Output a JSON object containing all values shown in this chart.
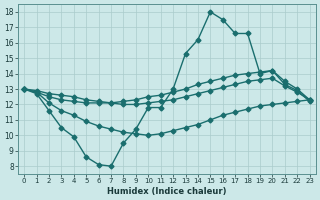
{
  "xlabel": "Humidex (Indice chaleur)",
  "bg_color": "#cce8e8",
  "grid_color": "#aacccc",
  "line_color": "#1a6e6e",
  "xlim": [
    -0.5,
    23.5
  ],
  "ylim": [
    7.5,
    18.5
  ],
  "yticks": [
    8,
    9,
    10,
    11,
    12,
    13,
    14,
    15,
    16,
    17,
    18
  ],
  "xticks": [
    0,
    1,
    2,
    3,
    4,
    5,
    6,
    7,
    8,
    9,
    10,
    11,
    12,
    13,
    14,
    15,
    16,
    17,
    18,
    19,
    20,
    21,
    22,
    23
  ],
  "series": [
    {
      "x": [
        0,
        1,
        2,
        3,
        4,
        5,
        6,
        7,
        8,
        9,
        10,
        11,
        12,
        13,
        14,
        15,
        16,
        17,
        18,
        19,
        20,
        21,
        22,
        23
      ],
      "y": [
        13.0,
        12.7,
        11.6,
        10.5,
        9.9,
        8.6,
        8.1,
        8.0,
        9.5,
        10.4,
        11.8,
        11.8,
        13.0,
        15.3,
        16.2,
        18.0,
        17.5,
        16.6,
        16.6,
        14.0,
        14.2,
        13.3,
        12.9,
        12.2
      ],
      "marker": "D",
      "markersize": 2.5,
      "linewidth": 1.0
    },
    {
      "x": [
        0,
        1,
        2,
        3,
        4,
        5,
        6,
        7,
        8,
        9,
        10,
        11,
        12,
        13,
        14,
        15,
        16,
        17,
        18,
        19,
        20,
        21,
        22,
        23
      ],
      "y": [
        13.0,
        12.8,
        12.5,
        12.3,
        12.2,
        12.1,
        12.1,
        12.1,
        12.2,
        12.3,
        12.5,
        12.6,
        12.8,
        13.0,
        13.3,
        13.5,
        13.7,
        13.9,
        14.0,
        14.1,
        14.2,
        13.5,
        13.0,
        12.3
      ],
      "marker": "D",
      "markersize": 2.5,
      "linewidth": 1.0
    },
    {
      "x": [
        0,
        1,
        2,
        3,
        4,
        5,
        6,
        7,
        8,
        9,
        10,
        11,
        12,
        13,
        14,
        15,
        16,
        17,
        18,
        19,
        20,
        21,
        22,
        23
      ],
      "y": [
        13.0,
        12.9,
        12.7,
        12.6,
        12.5,
        12.3,
        12.2,
        12.1,
        12.0,
        12.0,
        12.1,
        12.2,
        12.3,
        12.5,
        12.7,
        12.9,
        13.1,
        13.3,
        13.5,
        13.6,
        13.7,
        13.2,
        12.8,
        12.3
      ],
      "marker": "D",
      "markersize": 2.5,
      "linewidth": 1.0
    },
    {
      "x": [
        0,
        1,
        2,
        3,
        4,
        5,
        6,
        7,
        8,
        9,
        10,
        11,
        12,
        13,
        14,
        15,
        16,
        17,
        18,
        19,
        20,
        21,
        22,
        23
      ],
      "y": [
        13.0,
        12.8,
        12.1,
        11.6,
        11.3,
        10.9,
        10.6,
        10.4,
        10.2,
        10.1,
        10.0,
        10.1,
        10.3,
        10.5,
        10.7,
        11.0,
        11.3,
        11.5,
        11.7,
        11.9,
        12.0,
        12.1,
        12.2,
        12.3
      ],
      "marker": "D",
      "markersize": 2.5,
      "linewidth": 1.0
    }
  ]
}
